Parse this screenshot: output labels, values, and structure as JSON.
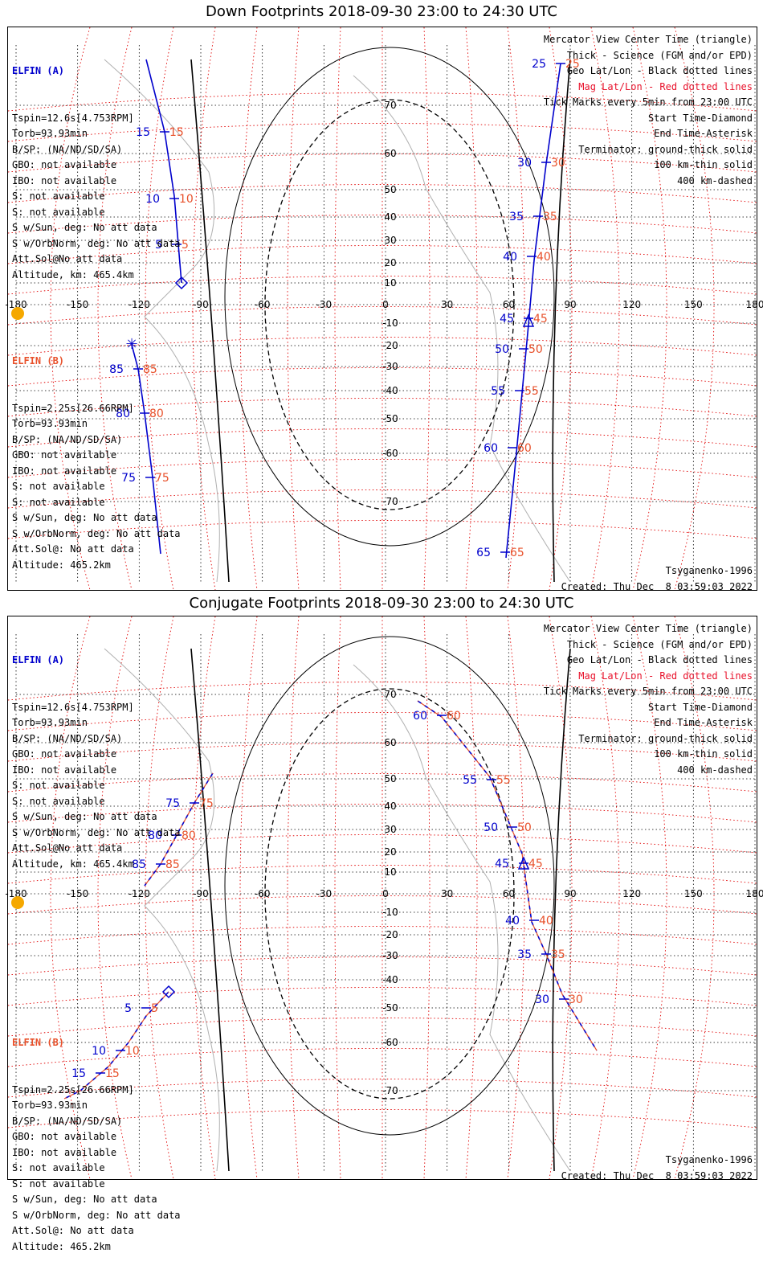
{
  "panels": [
    {
      "title": "Down Footprints 2018-09-30 23:00 to 24:30 UTC",
      "elfin_a": {
        "header": "ELFIN (A)",
        "lines": [
          "Tspin=12.6s[4.753RPM]",
          "Torb=93.93min",
          "B/SP: (NA/ND/SD/SA)",
          "GBO: not available",
          "IBO: not available",
          "S: not available",
          "S: not available",
          "S w/Sun, deg: No att data",
          "S w/OrbNorm, deg: No att data",
          "Att.Sol@No att data",
          "Altitude, km: 465.4km"
        ]
      },
      "elfin_b": {
        "header": "ELFIN (B)",
        "lines": [
          "Tspin=2.25s[26.66RPM]",
          "Torb=93.93min",
          "B/SP: (NA/ND/SD/SA)",
          "GBO: not available",
          "IBO: not available",
          "S: not available",
          "S: not available",
          "S w/Sun, deg: No att data",
          "S w/OrbNorm, deg: No att data",
          "Att.Sol@: No att data",
          "Altitude: 465.2km"
        ]
      },
      "footer_right": [
        "Tsyganenko-1996",
        "Created: Thu Dec  8 03:59:03 2022"
      ],
      "track_a": {
        "tick_labels": [
          "25",
          "30",
          "35",
          "40",
          "45",
          "50",
          "55",
          "60",
          "65"
        ]
      },
      "track_b": {
        "tick_labels": [
          "5",
          "10",
          "15",
          "75",
          "80",
          "85"
        ]
      }
    },
    {
      "title": "Conjugate Footprints 2018-09-30 23:00 to 24:30 UTC",
      "elfin_a": {
        "header": "ELFIN (A)",
        "lines": [
          "Tspin=12.6s[4.753RPM]",
          "Torb=93.93min",
          "B/SP: (NA/ND/SD/SA)",
          "GBO: not available",
          "IBO: not available",
          "S: not available",
          "S: not available",
          "S w/Sun, deg: No att data",
          "S w/OrbNorm, deg: No att data",
          "Att.Sol@No att data",
          "Altitude, km: 465.4km"
        ]
      },
      "elfin_b": {
        "header": "ELFIN (B)",
        "lines": [
          "Tspin=2.25s[26.66RPM]",
          "Torb=93.93min",
          "B/SP: (NA/ND/SD/SA)",
          "GBO: not available",
          "IBO: not available",
          "S: not available",
          "S: not available",
          "S w/Sun, deg: No att data",
          "S w/OrbNorm, deg: No att data",
          "Att.Sol@: No att data",
          "Altitude: 465.2km"
        ]
      },
      "footer_right": [
        "Tsyganenko-1996",
        "Created: Thu Dec  8 03:59:03 2022"
      ]
    }
  ],
  "legend": [
    "Mercator View Center Time (triangle)",
    "Thick - Science (FGM and/or EPD)",
    "Geo Lat/Lon - Black dotted lines",
    "Mag Lat/Lon - Red dotted lines",
    "Tick Marks every 5min from 23:00 UTC",
    "Start Time-Diamond",
    "End Time-Asterisk",
    "Terminator: ground-thick solid",
    "100 km-thin solid",
    "400 km-dashed"
  ],
  "lon_labels": [
    "-180",
    "-150",
    "-120",
    "-90",
    "-60",
    "-30",
    "0",
    "30",
    "60",
    "90",
    "120",
    "150",
    "180"
  ],
  "lat_labels": [
    "70",
    "60",
    "50",
    "40",
    "30",
    "20",
    "10",
    "-10",
    "-20",
    "-30",
    "-40",
    "-50",
    "-60",
    "-70"
  ],
  "colors": {
    "track": "#0000cc",
    "mag_grid": "#e00000",
    "sun": "#f5a800",
    "label_red": "#e8502a"
  }
}
